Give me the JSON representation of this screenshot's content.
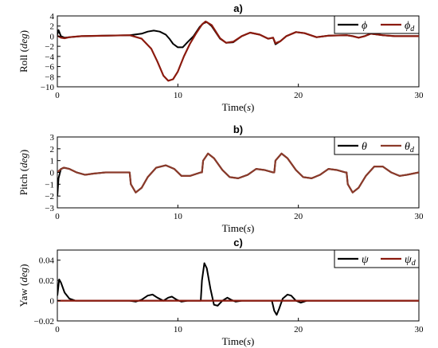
{
  "chart_data": [
    {
      "type": "line",
      "title": "a)",
      "xlabel_main": "Time",
      "xlabel_unit": "s",
      "ylabel_main": "Roll",
      "ylabel_unit": "deg",
      "xlim": [
        0,
        30
      ],
      "ylim": [
        -10,
        4
      ],
      "xticks": [
        0,
        10,
        20,
        30
      ],
      "yticks": [
        4,
        2,
        0,
        -2,
        -4,
        -6,
        -8,
        -10
      ],
      "legend_position": "top-right",
      "grid": false,
      "series": [
        {
          "name": "ϕ",
          "color": "#000000",
          "points": [
            [
              0,
              0.3
            ],
            [
              0.1,
              1.2
            ],
            [
              0.3,
              0
            ],
            [
              0.6,
              -0.3
            ],
            [
              1,
              -0.2
            ],
            [
              2,
              0
            ],
            [
              4,
              0.1
            ],
            [
              6,
              0.2
            ],
            [
              7,
              0.5
            ],
            [
              7.5,
              0.9
            ],
            [
              8,
              1.1
            ],
            [
              8.5,
              0.9
            ],
            [
              9,
              0.3
            ],
            [
              9.3,
              -0.5
            ],
            [
              9.6,
              -1.5
            ],
            [
              10,
              -2.2
            ],
            [
              10.4,
              -2.2
            ],
            [
              10.8,
              -1.2
            ],
            [
              11.3,
              0
            ],
            [
              11.8,
              1.8
            ],
            [
              12.1,
              2.5
            ],
            [
              12.4,
              2.8
            ],
            [
              12.8,
              2
            ],
            [
              13.5,
              -0.5
            ],
            [
              14,
              -1.3
            ],
            [
              14.6,
              -1.2
            ],
            [
              15.3,
              0
            ],
            [
              16,
              0.7
            ],
            [
              16.8,
              0.3
            ],
            [
              17.5,
              -0.5
            ],
            [
              17.9,
              -0.3
            ],
            [
              18.1,
              -1.6
            ],
            [
              18.5,
              -1
            ],
            [
              19,
              0
            ],
            [
              19.8,
              0.8
            ],
            [
              20.5,
              0.6
            ],
            [
              21.5,
              -0.2
            ],
            [
              22.5,
              0.1
            ],
            [
              24,
              0.2
            ],
            [
              24.5,
              0
            ],
            [
              25,
              -0.3
            ],
            [
              25.5,
              0
            ],
            [
              26,
              0.5
            ],
            [
              27,
              0.2
            ],
            [
              28,
              0
            ],
            [
              30,
              0
            ]
          ]
        },
        {
          "name": "ϕ_d",
          "color": "#8b1a0e",
          "points": [
            [
              0,
              0.1
            ],
            [
              0.3,
              -0.3
            ],
            [
              0.6,
              -0.4
            ],
            [
              1,
              -0.2
            ],
            [
              2,
              0
            ],
            [
              4,
              0.1
            ],
            [
              6,
              0.2
            ],
            [
              7,
              -0.5
            ],
            [
              7.8,
              -2.5
            ],
            [
              8.3,
              -5
            ],
            [
              8.8,
              -7.8
            ],
            [
              9.2,
              -8.8
            ],
            [
              9.6,
              -8.5
            ],
            [
              10,
              -7
            ],
            [
              10.5,
              -4
            ],
            [
              11,
              -1.5
            ],
            [
              11.5,
              0.5
            ],
            [
              12,
              2.3
            ],
            [
              12.3,
              2.9
            ],
            [
              12.8,
              2.2
            ],
            [
              13.5,
              -0.4
            ],
            [
              14,
              -1.3
            ],
            [
              14.6,
              -1.1
            ],
            [
              15.3,
              0
            ],
            [
              16,
              0.7
            ],
            [
              16.8,
              0.3
            ],
            [
              17.5,
              -0.5
            ],
            [
              17.9,
              -0.3
            ],
            [
              18.1,
              -1.4
            ],
            [
              18.5,
              -1
            ],
            [
              19,
              0
            ],
            [
              19.8,
              0.8
            ],
            [
              20.5,
              0.6
            ],
            [
              21.5,
              -0.2
            ],
            [
              22.5,
              0.1
            ],
            [
              24,
              0.2
            ],
            [
              24.5,
              0
            ],
            [
              25,
              -0.3
            ],
            [
              25.5,
              0
            ],
            [
              26,
              0.5
            ],
            [
              27,
              0.2
            ],
            [
              28,
              0
            ],
            [
              30,
              0
            ]
          ]
        }
      ]
    },
    {
      "type": "line",
      "title": "b)",
      "xlabel_main": "Time",
      "xlabel_unit": "s",
      "ylabel_main": "Pitch",
      "ylabel_unit": "deg",
      "xlim": [
        0,
        30
      ],
      "ylim": [
        -3,
        3
      ],
      "xticks": [
        0,
        10,
        20,
        30
      ],
      "yticks": [
        3,
        2,
        1,
        0,
        -1,
        -2,
        -3
      ],
      "legend_position": "top-right",
      "grid": false,
      "series": [
        {
          "name": "θ",
          "color": "#000000",
          "points": [
            [
              0,
              -2
            ],
            [
              0.1,
              -0.5
            ],
            [
              0.3,
              0.3
            ],
            [
              0.6,
              0.4
            ],
            [
              1,
              0.3
            ],
            [
              1.6,
              0
            ],
            [
              2.3,
              -0.2
            ],
            [
              3,
              -0.1
            ],
            [
              4,
              0
            ],
            [
              5,
              0
            ],
            [
              5.9,
              0
            ],
            [
              6,
              0
            ],
            [
              6.1,
              -1
            ],
            [
              6.5,
              -1.7
            ],
            [
              7,
              -1.3
            ],
            [
              7.5,
              -0.4
            ],
            [
              8.2,
              0.4
            ],
            [
              9,
              0.6
            ],
            [
              9.7,
              0.3
            ],
            [
              10.3,
              -0.3
            ],
            [
              11,
              -0.3
            ],
            [
              11.9,
              0
            ],
            [
              12,
              0
            ],
            [
              12.1,
              1
            ],
            [
              12.5,
              1.6
            ],
            [
              13,
              1.2
            ],
            [
              13.7,
              0.2
            ],
            [
              14.3,
              -0.4
            ],
            [
              15,
              -0.5
            ],
            [
              15.8,
              -0.2
            ],
            [
              16.5,
              0.3
            ],
            [
              17.2,
              0.2
            ],
            [
              17.9,
              0
            ],
            [
              18,
              0
            ],
            [
              18.1,
              1
            ],
            [
              18.6,
              1.6
            ],
            [
              19.1,
              1.2
            ],
            [
              19.8,
              0.2
            ],
            [
              20.4,
              -0.4
            ],
            [
              21.1,
              -0.5
            ],
            [
              21.8,
              -0.2
            ],
            [
              22.5,
              0.3
            ],
            [
              23.2,
              0.2
            ],
            [
              23.9,
              0
            ],
            [
              24,
              0
            ],
            [
              24.1,
              -1
            ],
            [
              24.5,
              -1.7
            ],
            [
              25,
              -1.3
            ],
            [
              25.6,
              -0.3
            ],
            [
              26.3,
              0.5
            ],
            [
              27,
              0.5
            ],
            [
              27.7,
              0
            ],
            [
              28.4,
              -0.3
            ],
            [
              29,
              -0.2
            ],
            [
              30,
              0
            ]
          ]
        },
        {
          "name": "θ_d",
          "color": "#8b3a2a",
          "points": [
            [
              0,
              0
            ],
            [
              0.2,
              0.2
            ],
            [
              0.5,
              0.4
            ],
            [
              1,
              0.3
            ],
            [
              1.6,
              0
            ],
            [
              2.3,
              -0.2
            ],
            [
              3,
              -0.1
            ],
            [
              4,
              0
            ],
            [
              5,
              0
            ],
            [
              5.9,
              0
            ],
            [
              6,
              0
            ],
            [
              6.1,
              -1
            ],
            [
              6.5,
              -1.7
            ],
            [
              7,
              -1.3
            ],
            [
              7.5,
              -0.4
            ],
            [
              8.2,
              0.4
            ],
            [
              9,
              0.6
            ],
            [
              9.7,
              0.3
            ],
            [
              10.3,
              -0.3
            ],
            [
              11,
              -0.3
            ],
            [
              11.9,
              0
            ],
            [
              12,
              0
            ],
            [
              12.1,
              1
            ],
            [
              12.5,
              1.6
            ],
            [
              13,
              1.2
            ],
            [
              13.7,
              0.2
            ],
            [
              14.3,
              -0.4
            ],
            [
              15,
              -0.5
            ],
            [
              15.8,
              -0.2
            ],
            [
              16.5,
              0.3
            ],
            [
              17.2,
              0.2
            ],
            [
              17.9,
              0
            ],
            [
              18,
              0
            ],
            [
              18.1,
              1
            ],
            [
              18.6,
              1.6
            ],
            [
              19.1,
              1.2
            ],
            [
              19.8,
              0.2
            ],
            [
              20.4,
              -0.4
            ],
            [
              21.1,
              -0.5
            ],
            [
              21.8,
              -0.2
            ],
            [
              22.5,
              0.3
            ],
            [
              23.2,
              0.2
            ],
            [
              23.9,
              0
            ],
            [
              24,
              0
            ],
            [
              24.1,
              -1
            ],
            [
              24.5,
              -1.7
            ],
            [
              25,
              -1.3
            ],
            [
              25.6,
              -0.3
            ],
            [
              26.3,
              0.5
            ],
            [
              27,
              0.5
            ],
            [
              27.7,
              0
            ],
            [
              28.4,
              -0.3
            ],
            [
              29,
              -0.2
            ],
            [
              30,
              0
            ]
          ]
        }
      ]
    },
    {
      "type": "line",
      "title": "c)",
      "xlabel_main": "Time",
      "xlabel_unit": "s",
      "ylabel_main": "Yaw",
      "ylabel_unit": "deg",
      "xlim": [
        0,
        30
      ],
      "ylim": [
        -0.02,
        0.05
      ],
      "xticks": [
        0,
        10,
        20,
        30
      ],
      "yticks": [
        0.04,
        0.02,
        0,
        -0.02
      ],
      "legend_position": "top-right",
      "grid": false,
      "series": [
        {
          "name": "ψ",
          "color": "#000000",
          "points": [
            [
              0,
              0.005
            ],
            [
              0.15,
              0.021
            ],
            [
              0.3,
              0.018
            ],
            [
              0.6,
              0.008
            ],
            [
              1,
              0.002
            ],
            [
              1.5,
              0
            ],
            [
              2,
              0
            ],
            [
              6,
              0
            ],
            [
              6.5,
              -0.001
            ],
            [
              7,
              0.001
            ],
            [
              7.5,
              0.005
            ],
            [
              7.9,
              0.006
            ],
            [
              8.3,
              0.003
            ],
            [
              8.8,
              0
            ],
            [
              9.2,
              0.003
            ],
            [
              9.5,
              0.004
            ],
            [
              9.9,
              0.001
            ],
            [
              10.3,
              -0.001
            ],
            [
              10.8,
              0
            ],
            [
              11.5,
              0
            ],
            [
              11.9,
              0
            ],
            [
              12,
              0.02
            ],
            [
              12.2,
              0.037
            ],
            [
              12.4,
              0.032
            ],
            [
              12.7,
              0.012
            ],
            [
              13,
              -0.004
            ],
            [
              13.3,
              -0.005
            ],
            [
              13.7,
              0
            ],
            [
              14.1,
              0.003
            ],
            [
              14.4,
              0.001
            ],
            [
              14.8,
              -0.001
            ],
            [
              15.3,
              0
            ],
            [
              17.8,
              0
            ],
            [
              18,
              -0.01
            ],
            [
              18.2,
              -0.014
            ],
            [
              18.4,
              -0.008
            ],
            [
              18.7,
              0.002
            ],
            [
              19.1,
              0.006
            ],
            [
              19.4,
              0.005
            ],
            [
              19.8,
              0
            ],
            [
              20.2,
              -0.002
            ],
            [
              20.7,
              0
            ],
            [
              21.5,
              0
            ],
            [
              30,
              0
            ]
          ]
        },
        {
          "name": "ψ_d",
          "color": "#8b1a0e",
          "points": [
            [
              0,
              0
            ],
            [
              30,
              0
            ]
          ]
        }
      ]
    }
  ]
}
